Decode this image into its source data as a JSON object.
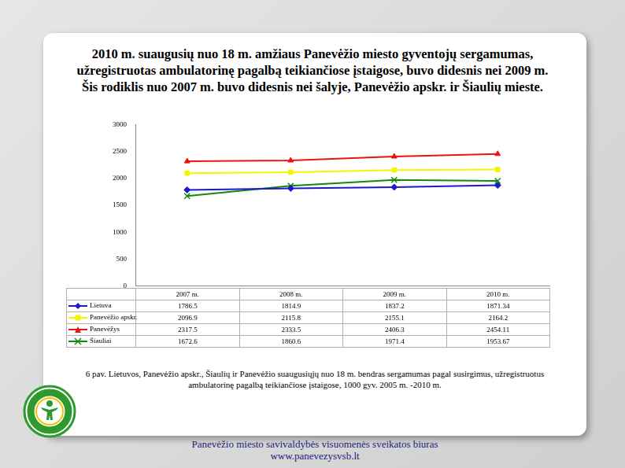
{
  "chart_data": {
    "type": "line",
    "title": "2010 m. suaugusių nuo 18 m. amžiaus Panevėžio miesto gyventojų sergamumas,\nužregistruotas ambulatorinę pagalbą teikiančiose įstaigose, buvo didesnis  nei 2009 m.\nŠis rodiklis nuo 2007 m. buvo didesnis nei šalyje, Panevėžio apskr. ir Šiaulių mieste.",
    "caption": "6 pav.  Lietuvos, Panevėžio apskr., Šiaulių ir Panevėžio suaugusiųjų nuo 18 m. bendras sergamumas pagal susirgimus, užregistruotus ambulatorinę pagalbą teikiančiose įstaigose, 1000 gyv. 2005 m. -2010 m.",
    "categories": [
      "2007 m.",
      "2008 m.",
      "2009 m.",
      "2010 m."
    ],
    "series": [
      {
        "name": "Lietuva",
        "color": "#1a1acc",
        "marker": "diamond",
        "values": [
          1786.5,
          1814.9,
          1837.2,
          1871.34
        ]
      },
      {
        "name": "Panevėžio apskr.",
        "color": "#f5f500",
        "marker": "square",
        "values": [
          2096.9,
          2115.8,
          2155.1,
          2164.2
        ]
      },
      {
        "name": "Panevėžys",
        "color": "#ee1111",
        "marker": "triangle",
        "values": [
          2317.5,
          2333.5,
          2406.3,
          2454.11
        ]
      },
      {
        "name": "Šiauliai",
        "color": "#128a12",
        "marker": "x",
        "values": [
          1672.6,
          1860.6,
          1971.4,
          1953.67
        ]
      }
    ],
    "ylim": [
      0,
      3000
    ],
    "yticks": [
      0,
      500,
      1000,
      1500,
      2000,
      2500,
      3000
    ],
    "grid": false
  },
  "footer": {
    "organization": "Panevėžio miesto savivaldybės visuomenės sveikatos biuras",
    "url": "www.panevezysvsb.lt"
  }
}
